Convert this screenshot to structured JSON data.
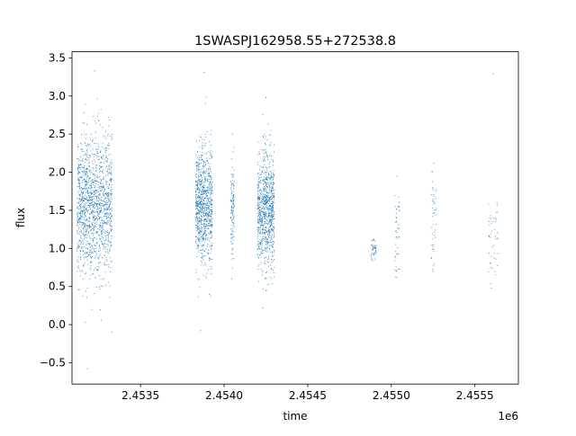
{
  "chart_data": {
    "type": "scatter",
    "title": "1SWASPJ162958.55+272538.8",
    "xlabel": "time",
    "ylabel": "flux",
    "x_offset_label": "1e6",
    "xlim": [
      2453090,
      2455760
    ],
    "ylim": [
      -0.78,
      3.58
    ],
    "grid": false,
    "point_color": "#1f77b4",
    "x_ticks": [
      {
        "value": 2453500,
        "label": "2.4535"
      },
      {
        "value": 2454000,
        "label": "2.4540"
      },
      {
        "value": 2454500,
        "label": "2.4545"
      },
      {
        "value": 2455000,
        "label": "2.4550"
      },
      {
        "value": 2455500,
        "label": "2.4555"
      }
    ],
    "y_ticks": [
      {
        "value": -0.5,
        "label": "−0.5"
      },
      {
        "value": 0.0,
        "label": "0.0"
      },
      {
        "value": 0.5,
        "label": "0.5"
      },
      {
        "value": 1.0,
        "label": "1.0"
      },
      {
        "value": 1.5,
        "label": "1.5"
      },
      {
        "value": 2.0,
        "label": "2.0"
      },
      {
        "value": 2.5,
        "label": "2.5"
      },
      {
        "value": 3.0,
        "label": "3.0"
      },
      {
        "value": 3.5,
        "label": "3.5"
      }
    ],
    "observation_clusters": [
      {
        "x_start": 2453120,
        "x_end": 2453330,
        "flux_center": 1.55,
        "flux_spread": 0.45,
        "flux_min": -0.58,
        "flux_max": 3.33,
        "density": "very high"
      },
      {
        "x_start": 2453830,
        "x_end": 2453930,
        "flux_center": 1.55,
        "flux_spread": 0.38,
        "flux_min": -0.08,
        "flux_max": 3.31,
        "density": "high"
      },
      {
        "x_start": 2454200,
        "x_end": 2454300,
        "flux_center": 1.5,
        "flux_spread": 0.38,
        "flux_min": 0.22,
        "flux_max": 2.98,
        "density": "high"
      },
      {
        "x_start": 2454040,
        "x_end": 2454060,
        "flux_center": 1.5,
        "flux_spread": 0.3,
        "flux_min": 0.6,
        "flux_max": 2.5,
        "density": "medium"
      },
      {
        "x_start": 2454880,
        "x_end": 2454910,
        "flux_center": 0.98,
        "flux_spread": 0.1,
        "flux_min": 0.84,
        "flux_max": 1.12,
        "density": "low"
      },
      {
        "x_start": 2455020,
        "x_end": 2455050,
        "flux_center": 1.15,
        "flux_spread": 0.3,
        "flux_min": 0.62,
        "flux_max": 1.95,
        "density": "low"
      },
      {
        "x_start": 2455240,
        "x_end": 2455270,
        "flux_center": 1.35,
        "flux_spread": 0.35,
        "flux_min": 0.7,
        "flux_max": 2.12,
        "density": "low"
      },
      {
        "x_start": 2455580,
        "x_end": 2455640,
        "flux_center": 1.15,
        "flux_spread": 0.35,
        "flux_min": 0.48,
        "flux_max": 3.29,
        "density": "low"
      }
    ]
  }
}
